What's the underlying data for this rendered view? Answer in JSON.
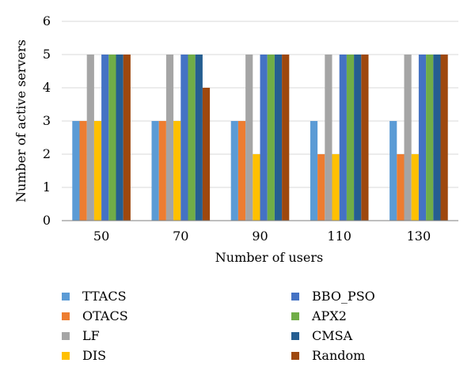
{
  "chart_data": {
    "type": "bar",
    "title": "",
    "xlabel": "Number of users",
    "ylabel": "Number of active servers",
    "ylim": [
      0,
      6
    ],
    "yticks": [
      "0",
      "1",
      "2",
      "3",
      "4",
      "5",
      "6"
    ],
    "categories": [
      "50",
      "70",
      "90",
      "110",
      "130"
    ],
    "legend_position": "bottom",
    "series": [
      {
        "name": "TTACS",
        "color": "#5B9BD5",
        "values": [
          3,
          3,
          3,
          3,
          3
        ]
      },
      {
        "name": "OTACS",
        "color": "#ED7D31",
        "values": [
          3,
          3,
          3,
          2,
          2
        ]
      },
      {
        "name": "LF",
        "color": "#A5A5A5",
        "values": [
          5,
          5,
          5,
          5,
          5
        ]
      },
      {
        "name": "DIS",
        "color": "#FFC000",
        "values": [
          3,
          3,
          2,
          2,
          2
        ]
      },
      {
        "name": "BBO_PSO",
        "color": "#4472C4",
        "values": [
          5,
          5,
          5,
          5,
          5
        ]
      },
      {
        "name": "APX2",
        "color": "#70AD47",
        "values": [
          5,
          5,
          5,
          5,
          5
        ]
      },
      {
        "name": "CMSA",
        "color": "#255E91",
        "values": [
          5,
          5,
          5,
          5,
          5
        ]
      },
      {
        "name": "Random",
        "color": "#9E480E",
        "values": [
          5,
          4,
          5,
          5,
          5
        ]
      }
    ]
  }
}
